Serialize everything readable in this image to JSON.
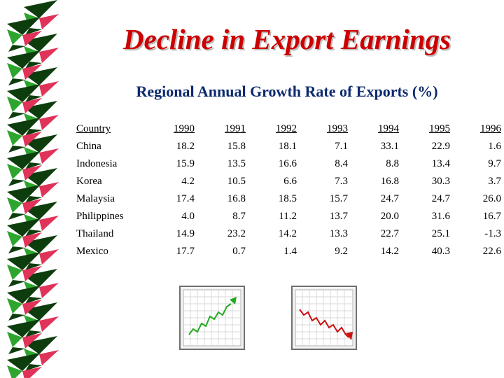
{
  "title": "Decline in Export Earnings",
  "subtitle": "Regional Annual Growth Rate of Exports (%)",
  "table": {
    "columns": [
      "Country",
      "1990",
      "1991",
      "1992",
      "1993",
      "1994",
      "1995",
      "1996"
    ],
    "rows": [
      [
        "China",
        "18.2",
        "15.8",
        "18.1",
        "7.1",
        "33.1",
        "22.9",
        "1.6"
      ],
      [
        "Indonesia",
        "15.9",
        "13.5",
        "16.6",
        "8.4",
        "8.8",
        "13.4",
        "9.7"
      ],
      [
        "Korea",
        "4.2",
        "10.5",
        "6.6",
        "7.3",
        "16.8",
        "30.3",
        "3.7"
      ],
      [
        "Malaysia",
        "17.4",
        "16.8",
        "18.5",
        "15.7",
        "24.7",
        "24.7",
        "26.0"
      ],
      [
        "Philippines",
        "4.0",
        "8.7",
        "11.2",
        "13.7",
        "20.0",
        "31.6",
        "16.7"
      ],
      [
        "Thailand",
        "14.9",
        "23.2",
        "14.2",
        "13.3",
        "22.7",
        "25.1",
        "-1.3"
      ],
      [
        "Mexico",
        "17.7",
        "0.7",
        "1.4",
        "9.2",
        "14.2",
        "40.3",
        "22.6"
      ]
    ]
  },
  "icons": [
    {
      "name": "rising-trend-chart-icon",
      "color": "#22aa22"
    },
    {
      "name": "falling-trend-chart-icon",
      "color": "#cc1111"
    }
  ],
  "colors": {
    "title": "#cc0000",
    "subtitle": "#0d2a6e",
    "ribbon_dark": "#0d3d0d",
    "ribbon_green": "#2ea52e",
    "ribbon_red": "#e0335a"
  }
}
